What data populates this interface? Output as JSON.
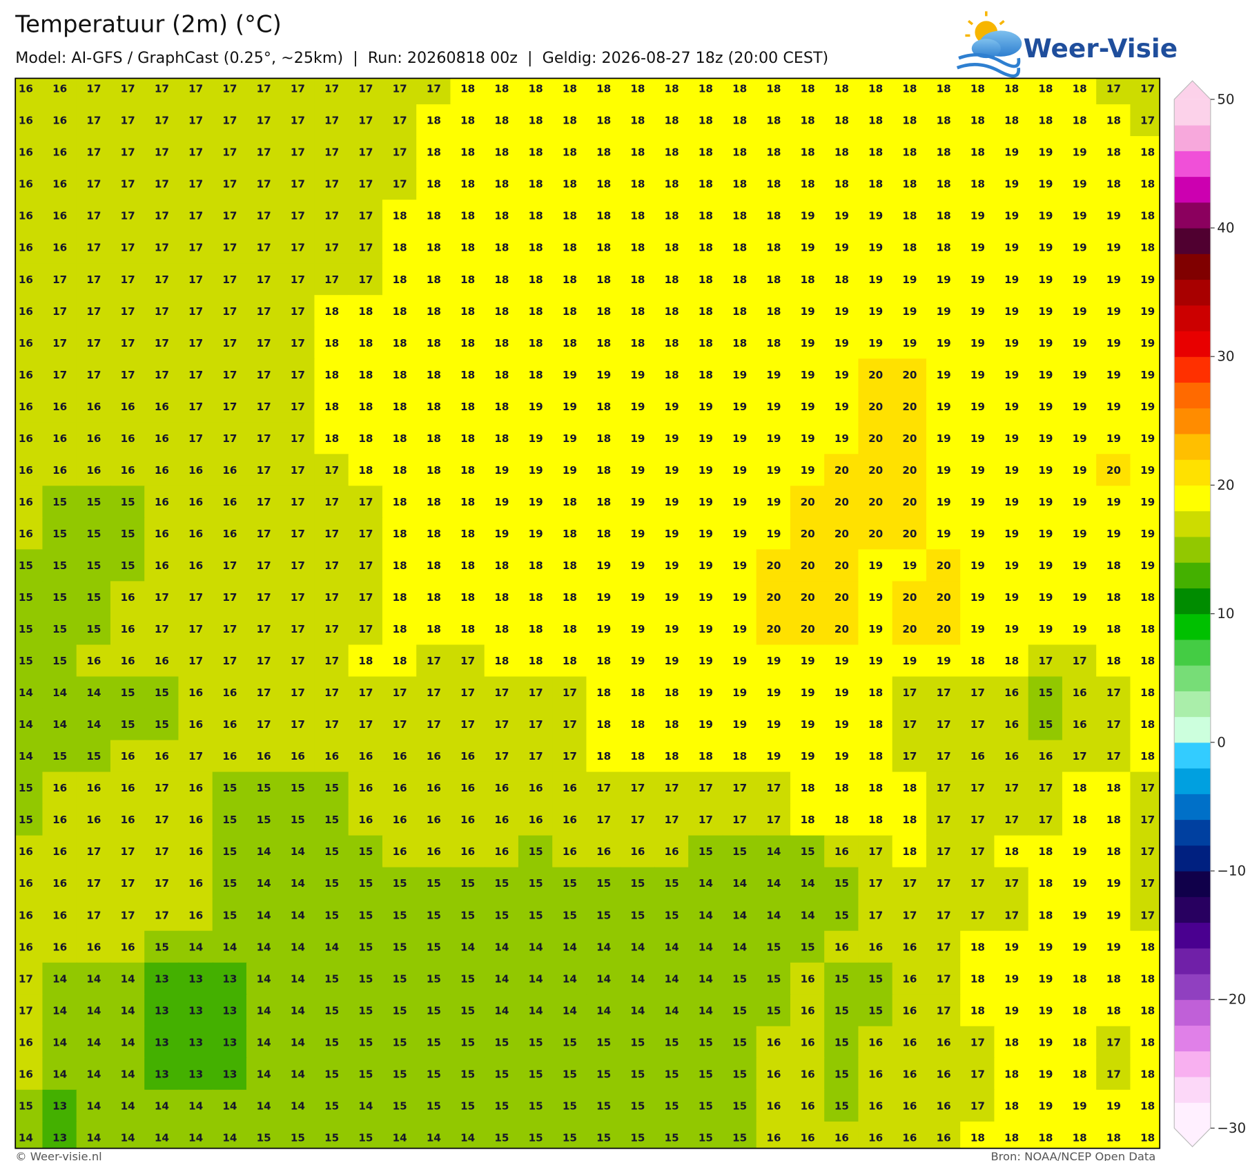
{
  "header": {
    "title": "Temperatuur (2m) (°C)",
    "subtitle": "Model: AI-GFS / GraphCast (0.25°, ~25km)  |  Run: 20260818 00z  |  Geldig: 2026-08-27 18z (20:00 CEST)",
    "logo": "Weer-Visie"
  },
  "footer": {
    "left": "© Weer-visie.nl",
    "right": "Bron: NOAA/NCEP Open Data"
  },
  "colorbar": {
    "min": -30,
    "max": 50,
    "colors": [
      "#fff0ff",
      "#fcd8f8",
      "#f8b0f0",
      "#e080e8",
      "#c060d8",
      "#9040c0",
      "#7020a8",
      "#4a0090",
      "#280060",
      "#10004a",
      "#002080",
      "#0040a0",
      "#0070c8",
      "#00a0e0",
      "#33ccff",
      "#ccffdd",
      "#aaeeaa",
      "#77dd77",
      "#44cc44",
      "#00c000",
      "#008c00",
      "#44b000",
      "#92c800",
      "#cddc00",
      "#ffff00",
      "#ffe100",
      "#ffbf00",
      "#ff8c00",
      "#ff6a00",
      "#ff3000",
      "#e80000",
      "#cc0000",
      "#a80000",
      "#800000",
      "#500030",
      "#8b005e",
      "#cc00b0",
      "#f050d8",
      "#f7a8dc",
      "#fcd2ea"
    ],
    "ticks": [
      50,
      40,
      30,
      20,
      10,
      0,
      {
        "value": -10,
        "label": "−10"
      },
      {
        "value": -20,
        "label": "−20"
      },
      {
        "value": -30,
        "label": "−30"
      }
    ]
  },
  "grid": {
    "rows": [
      [
        16,
        16,
        17,
        17,
        17,
        17,
        17,
        17,
        17,
        17,
        17,
        17,
        17,
        18,
        18,
        18,
        18,
        18,
        18,
        18,
        18,
        18,
        18,
        18,
        18,
        18,
        18,
        18,
        18,
        18,
        18,
        18,
        17,
        17
      ],
      [
        16,
        16,
        17,
        17,
        17,
        17,
        17,
        17,
        17,
        17,
        17,
        17,
        18,
        18,
        18,
        18,
        18,
        18,
        18,
        18,
        18,
        18,
        18,
        18,
        18,
        18,
        18,
        18,
        18,
        18,
        18,
        18,
        18,
        17
      ],
      [
        16,
        16,
        17,
        17,
        17,
        17,
        17,
        17,
        17,
        17,
        17,
        17,
        18,
        18,
        18,
        18,
        18,
        18,
        18,
        18,
        18,
        18,
        18,
        18,
        18,
        18,
        18,
        18,
        18,
        19,
        19,
        19,
        18,
        18
      ],
      [
        16,
        16,
        17,
        17,
        17,
        17,
        17,
        17,
        17,
        17,
        17,
        17,
        18,
        18,
        18,
        18,
        18,
        18,
        18,
        18,
        18,
        18,
        18,
        18,
        18,
        18,
        18,
        18,
        18,
        19,
        19,
        19,
        18,
        18
      ],
      [
        16,
        16,
        17,
        17,
        17,
        17,
        17,
        17,
        17,
        17,
        17,
        18,
        18,
        18,
        18,
        18,
        18,
        18,
        18,
        18,
        18,
        18,
        18,
        19,
        19,
        19,
        18,
        18,
        19,
        19,
        19,
        19,
        19,
        18
      ],
      [
        16,
        16,
        17,
        17,
        17,
        17,
        17,
        17,
        17,
        17,
        17,
        18,
        18,
        18,
        18,
        18,
        18,
        18,
        18,
        18,
        18,
        18,
        18,
        19,
        19,
        19,
        18,
        18,
        19,
        19,
        19,
        19,
        19,
        18
      ],
      [
        16,
        17,
        17,
        17,
        17,
        17,
        17,
        17,
        17,
        17,
        17,
        18,
        18,
        18,
        18,
        18,
        18,
        18,
        18,
        18,
        18,
        18,
        18,
        18,
        18,
        19,
        19,
        19,
        19,
        19,
        19,
        19,
        19,
        19
      ],
      [
        16,
        17,
        17,
        17,
        17,
        17,
        17,
        17,
        17,
        18,
        18,
        18,
        18,
        18,
        18,
        18,
        18,
        18,
        18,
        18,
        18,
        18,
        18,
        19,
        19,
        19,
        19,
        19,
        19,
        19,
        19,
        19,
        19,
        19
      ],
      [
        16,
        17,
        17,
        17,
        17,
        17,
        17,
        17,
        17,
        18,
        18,
        18,
        18,
        18,
        18,
        18,
        18,
        18,
        18,
        18,
        18,
        18,
        18,
        19,
        19,
        19,
        19,
        19,
        19,
        19,
        19,
        19,
        19,
        19
      ],
      [
        16,
        17,
        17,
        17,
        17,
        17,
        17,
        17,
        17,
        18,
        18,
        18,
        18,
        18,
        18,
        18,
        19,
        19,
        19,
        18,
        18,
        19,
        19,
        19,
        19,
        20,
        20,
        19,
        19,
        19,
        19,
        19,
        19,
        19
      ],
      [
        16,
        16,
        16,
        16,
        16,
        17,
        17,
        17,
        17,
        18,
        18,
        18,
        18,
        18,
        18,
        19,
        19,
        18,
        19,
        19,
        19,
        19,
        19,
        19,
        19,
        20,
        20,
        19,
        19,
        19,
        19,
        19,
        19,
        19
      ],
      [
        16,
        16,
        16,
        16,
        16,
        17,
        17,
        17,
        17,
        18,
        18,
        18,
        18,
        18,
        18,
        19,
        19,
        18,
        19,
        19,
        19,
        19,
        19,
        19,
        19,
        20,
        20,
        19,
        19,
        19,
        19,
        19,
        19,
        19
      ],
      [
        16,
        16,
        16,
        16,
        16,
        16,
        16,
        17,
        17,
        17,
        18,
        18,
        18,
        18,
        19,
        19,
        19,
        18,
        19,
        19,
        19,
        19,
        19,
        19,
        20,
        20,
        20,
        19,
        19,
        19,
        19,
        19,
        20,
        19
      ],
      [
        16,
        15,
        15,
        15,
        16,
        16,
        16,
        17,
        17,
        17,
        17,
        18,
        18,
        18,
        19,
        19,
        18,
        18,
        19,
        19,
        19,
        19,
        19,
        20,
        20,
        20,
        20,
        19,
        19,
        19,
        19,
        19,
        19,
        19
      ],
      [
        16,
        15,
        15,
        15,
        16,
        16,
        16,
        17,
        17,
        17,
        17,
        18,
        18,
        18,
        19,
        19,
        18,
        18,
        19,
        19,
        19,
        19,
        19,
        20,
        20,
        20,
        20,
        19,
        19,
        19,
        19,
        19,
        19,
        19
      ],
      [
        15,
        15,
        15,
        15,
        16,
        16,
        17,
        17,
        17,
        17,
        17,
        18,
        18,
        18,
        18,
        18,
        18,
        19,
        19,
        19,
        19,
        19,
        20,
        20,
        20,
        19,
        19,
        20,
        19,
        19,
        19,
        19,
        18,
        19
      ],
      [
        15,
        15,
        15,
        16,
        17,
        17,
        17,
        17,
        17,
        17,
        17,
        18,
        18,
        18,
        18,
        18,
        18,
        19,
        19,
        19,
        19,
        19,
        20,
        20,
        20,
        19,
        20,
        20,
        19,
        19,
        19,
        19,
        18,
        18
      ],
      [
        15,
        15,
        15,
        16,
        17,
        17,
        17,
        17,
        17,
        17,
        17,
        18,
        18,
        18,
        18,
        18,
        18,
        19,
        19,
        19,
        19,
        19,
        20,
        20,
        20,
        19,
        20,
        20,
        19,
        19,
        19,
        19,
        18,
        18
      ],
      [
        15,
        15,
        16,
        16,
        16,
        17,
        17,
        17,
        17,
        17,
        18,
        18,
        17,
        17,
        18,
        18,
        18,
        18,
        19,
        19,
        19,
        19,
        19,
        19,
        19,
        19,
        19,
        19,
        18,
        18,
        17,
        17,
        18,
        18
      ],
      [
        14,
        14,
        14,
        15,
        15,
        16,
        16,
        17,
        17,
        17,
        17,
        17,
        17,
        17,
        17,
        17,
        17,
        18,
        18,
        18,
        19,
        19,
        19,
        19,
        19,
        18,
        17,
        17,
        17,
        16,
        15,
        16,
        17,
        18
      ],
      [
        14,
        14,
        14,
        15,
        15,
        16,
        16,
        17,
        17,
        17,
        17,
        17,
        17,
        17,
        17,
        17,
        17,
        18,
        18,
        18,
        19,
        19,
        19,
        19,
        19,
        18,
        17,
        17,
        17,
        16,
        15,
        16,
        17,
        18
      ],
      [
        14,
        15,
        15,
        16,
        16,
        17,
        16,
        16,
        16,
        16,
        16,
        16,
        16,
        16,
        17,
        17,
        17,
        18,
        18,
        18,
        18,
        18,
        19,
        19,
        19,
        18,
        17,
        17,
        16,
        16,
        16,
        17,
        17,
        18
      ],
      [
        15,
        16,
        16,
        16,
        17,
        16,
        15,
        15,
        15,
        15,
        16,
        16,
        16,
        16,
        16,
        16,
        16,
        17,
        17,
        17,
        17,
        17,
        17,
        18,
        18,
        18,
        18,
        17,
        17,
        17,
        17,
        18,
        18,
        17
      ],
      [
        15,
        16,
        16,
        16,
        17,
        16,
        15,
        15,
        15,
        15,
        16,
        16,
        16,
        16,
        16,
        16,
        16,
        17,
        17,
        17,
        17,
        17,
        17,
        18,
        18,
        18,
        18,
        17,
        17,
        17,
        17,
        18,
        18,
        17
      ],
      [
        16,
        16,
        17,
        17,
        17,
        16,
        15,
        14,
        14,
        15,
        15,
        16,
        16,
        16,
        16,
        15,
        16,
        16,
        16,
        16,
        15,
        15,
        14,
        15,
        16,
        17,
        18,
        17,
        17,
        18,
        18,
        19,
        18,
        17
      ],
      [
        16,
        16,
        17,
        17,
        17,
        16,
        15,
        14,
        14,
        15,
        15,
        15,
        15,
        15,
        15,
        15,
        15,
        15,
        15,
        15,
        14,
        14,
        14,
        14,
        15,
        17,
        17,
        17,
        17,
        17,
        18,
        19,
        19,
        17
      ],
      [
        16,
        16,
        17,
        17,
        17,
        16,
        15,
        14,
        14,
        15,
        15,
        15,
        15,
        15,
        15,
        15,
        15,
        15,
        15,
        15,
        14,
        14,
        14,
        14,
        15,
        17,
        17,
        17,
        17,
        17,
        18,
        19,
        19,
        17
      ],
      [
        16,
        16,
        16,
        16,
        15,
        14,
        14,
        14,
        14,
        14,
        15,
        15,
        15,
        14,
        14,
        14,
        14,
        14,
        14,
        14,
        14,
        14,
        15,
        15,
        16,
        16,
        16,
        17,
        18,
        19,
        19,
        19,
        19,
        18
      ],
      [
        17,
        14,
        14,
        14,
        13,
        13,
        13,
        14,
        14,
        15,
        15,
        15,
        15,
        15,
        14,
        14,
        14,
        14,
        14,
        14,
        14,
        15,
        15,
        16,
        15,
        15,
        16,
        17,
        18,
        19,
        19,
        18,
        18,
        18
      ],
      [
        17,
        14,
        14,
        14,
        13,
        13,
        13,
        14,
        14,
        15,
        15,
        15,
        15,
        15,
        14,
        14,
        14,
        14,
        14,
        14,
        14,
        15,
        15,
        16,
        15,
        15,
        16,
        17,
        18,
        19,
        19,
        18,
        18,
        18
      ],
      [
        16,
        14,
        14,
        14,
        13,
        13,
        13,
        14,
        14,
        15,
        15,
        15,
        15,
        15,
        15,
        15,
        15,
        15,
        15,
        15,
        15,
        15,
        16,
        16,
        15,
        16,
        16,
        16,
        17,
        18,
        19,
        18,
        17,
        18
      ],
      [
        16,
        14,
        14,
        14,
        13,
        13,
        13,
        14,
        14,
        15,
        15,
        15,
        15,
        15,
        15,
        15,
        15,
        15,
        15,
        15,
        15,
        15,
        16,
        16,
        15,
        16,
        16,
        16,
        17,
        18,
        19,
        18,
        17,
        18
      ],
      [
        15,
        13,
        14,
        14,
        14,
        14,
        14,
        14,
        14,
        15,
        14,
        15,
        15,
        15,
        15,
        15,
        15,
        15,
        15,
        15,
        15,
        15,
        16,
        16,
        15,
        16,
        16,
        16,
        17,
        18,
        19,
        19,
        19,
        18
      ],
      [
        14,
        13,
        14,
        14,
        14,
        14,
        14,
        15,
        15,
        15,
        15,
        14,
        14,
        14,
        15,
        15,
        15,
        15,
        15,
        15,
        15,
        15,
        16,
        16,
        16,
        16,
        16,
        16,
        18,
        18,
        18,
        18,
        18,
        18
      ]
    ]
  }
}
